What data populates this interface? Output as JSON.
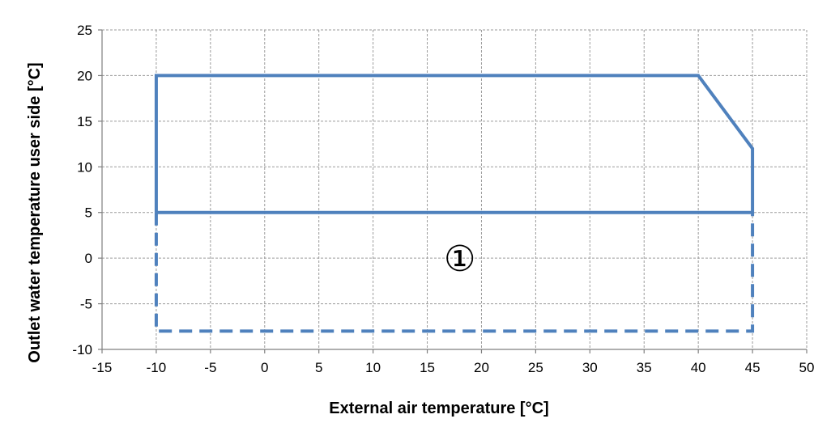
{
  "chart_data": {
    "type": "line",
    "title": "",
    "xlabel": "External air temperature [°C]",
    "ylabel": "Outlet water temperature user side [°C]",
    "xlim": [
      -15,
      50
    ],
    "ylim": [
      -10,
      25
    ],
    "xticks": [
      -15,
      -10,
      -5,
      0,
      5,
      10,
      15,
      20,
      25,
      30,
      35,
      40,
      45,
      50
    ],
    "yticks": [
      -10,
      -5,
      0,
      5,
      10,
      15,
      20,
      25
    ],
    "grid": true,
    "grid_style": "dashed",
    "series_color": "#4f81bd",
    "series": [
      {
        "style": "solid",
        "x": [
          -10,
          -10,
          40,
          45,
          45,
          -10
        ],
        "y": [
          5,
          20,
          20,
          12,
          5,
          5
        ]
      },
      {
        "style": "dashed",
        "x": [
          -10,
          -10,
          45,
          45
        ],
        "y": [
          5,
          -8,
          -8,
          5
        ]
      }
    ],
    "annotations": [
      {
        "text": "①",
        "x": 18,
        "y": 0
      }
    ]
  }
}
